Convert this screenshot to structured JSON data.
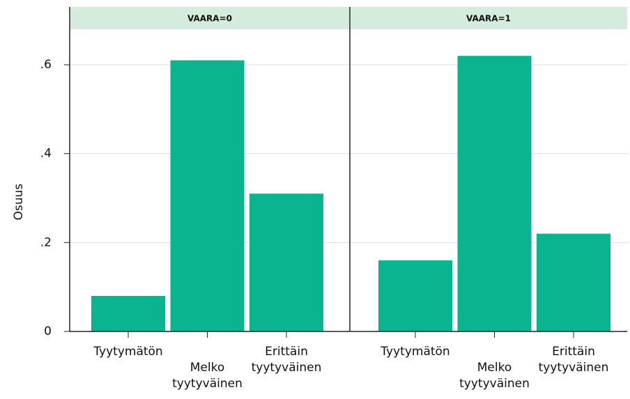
{
  "chart_data": [
    {
      "type": "bar",
      "title": "VAARA=0",
      "ylabel": "Osuus",
      "categories": [
        "Tyytymätön",
        "Melko tyytyväinen",
        "Erittäin tyytyväinen"
      ],
      "values": [
        0.08,
        0.61,
        0.31
      ],
      "color": "#0ab48f",
      "ylim": [
        0,
        0.73
      ],
      "yticks": [
        0,
        {
          "value": 0.2,
          "label": ".2"
        },
        {
          "value": 0.4,
          "label": ".4"
        },
        {
          "value": 0.6,
          "label": ".6"
        }
      ],
      "grid": true
    },
    {
      "type": "bar",
      "title": "VAARA=1",
      "categories": [
        "Tyytymätön",
        "Melko tyytyväinen",
        "Erittäin tyytyväinen"
      ],
      "values": [
        0.16,
        0.62,
        0.22
      ],
      "color": "#0ab48f",
      "ylim": [
        0,
        0.73
      ],
      "grid": true
    }
  ]
}
